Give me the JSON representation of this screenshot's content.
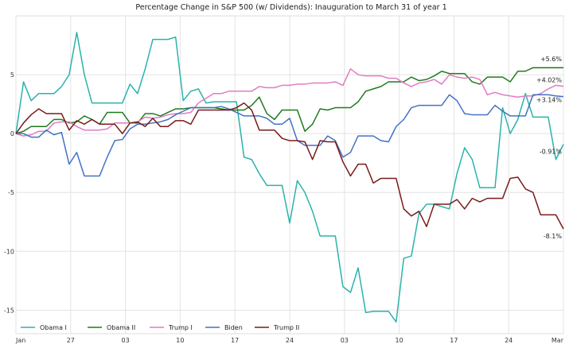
{
  "chart_data": {
    "type": "line",
    "title": "Percentage Change in S&P 500 (w/ Dividends): Inauguration to March 31 of year 1",
    "xlabel": "",
    "ylabel": "",
    "ylim": [
      -17,
      10
    ],
    "yticks": [
      -15,
      -10,
      -5,
      0,
      5
    ],
    "xticks": [
      "Jan",
      "27",
      "03",
      "10",
      "17",
      "24",
      "03",
      "10",
      "17",
      "24",
      "Mar"
    ],
    "grid": true,
    "legend_position": "bottom-left",
    "series": [
      {
        "name": "Obama I",
        "color": "#2ab3aa",
        "values": [
          0,
          4.4,
          2.8,
          3.4,
          3.4,
          3.4,
          4.0,
          5.0,
          8.6,
          5.0,
          2.6,
          2.6,
          2.6,
          2.6,
          2.6,
          4.2,
          3.4,
          5.5,
          8.0,
          8.0,
          8.0,
          8.2,
          2.8,
          3.6,
          3.8,
          2.6,
          2.7,
          2.7,
          2.7,
          2.7,
          -2.0,
          -2.2,
          -3.4,
          -4.4,
          -4.4,
          -4.4,
          -7.6,
          -4.0,
          -5.0,
          -6.6,
          -8.7,
          -8.7,
          -8.7,
          -13.0,
          -13.5,
          -11.4,
          -15.2,
          -15.1,
          -15.1,
          -15.1,
          -16.0,
          -10.6,
          -10.4,
          -6.8,
          -6.0,
          -6.0,
          -6.2,
          -6.4,
          -3.4,
          -1.2,
          -2.2,
          -4.6,
          -4.6,
          -4.6,
          2.2,
          0.0,
          1.2,
          3.4,
          1.4,
          1.4,
          1.4,
          -2.2,
          -0.91
        ]
      },
      {
        "name": "Obama II",
        "color": "#1f7a1f",
        "values": [
          0,
          0.2,
          0.6,
          0.6,
          0.6,
          1.2,
          1.2,
          0.9,
          1.0,
          1.5,
          1.2,
          0.8,
          1.8,
          1.8,
          1.8,
          0.9,
          0.9,
          1.7,
          1.7,
          1.5,
          1.8,
          2.1,
          2.1,
          2.2,
          2.2,
          2.2,
          2.2,
          2.1,
          2.0,
          2.0,
          2.0,
          2.4,
          3.1,
          1.7,
          1.2,
          2.0,
          2.0,
          2.0,
          0.2,
          0.8,
          2.1,
          2.0,
          2.2,
          2.2,
          2.2,
          2.7,
          3.6,
          3.8,
          4.0,
          4.4,
          4.4,
          4.4,
          4.8,
          4.5,
          4.6,
          4.9,
          5.3,
          5.1,
          5.1,
          5.1,
          4.4,
          4.2,
          4.8,
          4.8,
          4.8,
          4.4,
          5.3,
          5.3,
          5.6,
          5.6,
          5.6,
          5.6,
          5.6
        ]
      },
      {
        "name": "Trump I",
        "color": "#e27bc4",
        "values": [
          0,
          -0.2,
          -0.1,
          0.2,
          0.2,
          0.9,
          1.0,
          1.0,
          0.6,
          0.3,
          0.3,
          0.3,
          0.4,
          0.9,
          0.9,
          0.9,
          1.0,
          1.4,
          1.3,
          1.4,
          1.6,
          1.7,
          1.7,
          1.8,
          2.6,
          3.0,
          3.4,
          3.4,
          3.6,
          3.6,
          3.6,
          3.6,
          4.0,
          3.9,
          3.9,
          4.1,
          4.1,
          4.2,
          4.2,
          4.3,
          4.3,
          4.3,
          4.4,
          4.1,
          5.5,
          5.0,
          4.9,
          4.9,
          4.9,
          4.7,
          4.7,
          4.3,
          4.0,
          4.3,
          4.4,
          4.6,
          4.2,
          5.0,
          4.8,
          4.7,
          4.8,
          4.6,
          3.3,
          3.5,
          3.3,
          3.2,
          3.1,
          3.2,
          3.2,
          3.4,
          3.8,
          4.1,
          4.02
        ]
      },
      {
        "name": "Biden",
        "color": "#4472c4",
        "values": [
          0,
          0.0,
          -0.3,
          -0.3,
          0.3,
          -0.1,
          0.1,
          -2.6,
          -1.6,
          -3.6,
          -3.6,
          -3.6,
          -2.0,
          -0.6,
          -0.5,
          0.4,
          0.8,
          0.8,
          0.9,
          1.0,
          1.2,
          1.6,
          1.9,
          2.2,
          2.2,
          2.2,
          2.2,
          2.3,
          2.1,
          1.8,
          1.5,
          1.5,
          1.5,
          1.3,
          0.8,
          0.8,
          1.3,
          -0.6,
          -1.0,
          -1.0,
          -1.0,
          -0.2,
          -0.6,
          -2.0,
          -1.6,
          -0.2,
          -0.2,
          -0.2,
          -0.6,
          -0.7,
          0.6,
          1.2,
          2.2,
          2.4,
          2.4,
          2.4,
          2.4,
          3.3,
          2.8,
          1.7,
          1.6,
          1.6,
          1.6,
          2.4,
          1.9,
          1.5,
          1.5,
          1.5,
          3.3,
          3.3,
          3.3,
          3.2,
          3.14
        ]
      },
      {
        "name": "Trump II",
        "color": "#7a1a1a",
        "values": [
          0,
          0.9,
          1.6,
          2.1,
          1.7,
          1.7,
          1.7,
          0.3,
          1.1,
          0.8,
          1.2,
          0.8,
          0.8,
          0.8,
          0.0,
          0.9,
          1.0,
          0.6,
          1.3,
          0.6,
          0.6,
          1.1,
          1.1,
          0.8,
          2.0,
          2.0,
          2.0,
          2.0,
          2.0,
          2.2,
          2.6,
          2.0,
          0.3,
          0.3,
          0.3,
          -0.4,
          -0.6,
          -0.6,
          -0.7,
          -2.2,
          -0.6,
          -0.7,
          -0.7,
          -2.4,
          -3.6,
          -2.6,
          -2.6,
          -4.2,
          -3.8,
          -3.8,
          -3.8,
          -6.4,
          -7.0,
          -6.6,
          -7.9,
          -6.0,
          -6.0,
          -6.0,
          -5.6,
          -6.4,
          -5.5,
          -5.8,
          -5.5,
          -5.5,
          -5.5,
          -3.8,
          -3.7,
          -4.7,
          -5.0,
          -6.9,
          -6.9,
          -6.9,
          -8.1
        ]
      }
    ],
    "end_labels": [
      {
        "series": "Obama II",
        "text": "+5.6%",
        "value": 5.6
      },
      {
        "series": "Trump I",
        "text": "+4.02%",
        "value": 4.02
      },
      {
        "series": "Biden",
        "text": "+3.14%",
        "value": 3.14
      },
      {
        "series": "Obama I",
        "text": "-0.91%",
        "value": -0.91
      },
      {
        "series": "Trump II",
        "text": "-8.1%",
        "value": -8.1
      }
    ]
  }
}
